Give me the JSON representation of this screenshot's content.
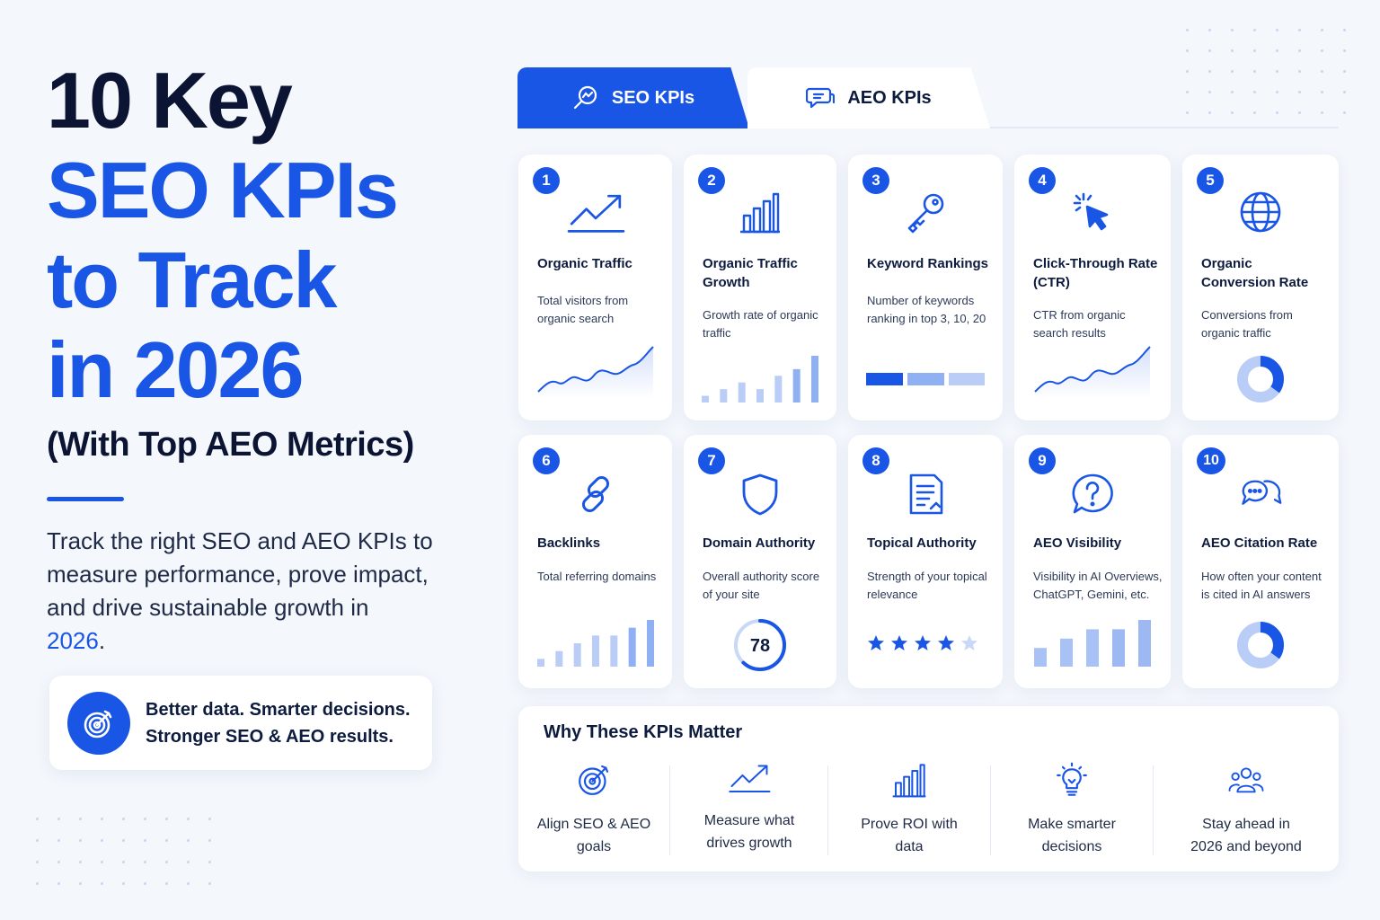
{
  "hero": {
    "title_line1": "10 Key",
    "title_line2": "SEO KPIs",
    "title_line3": "to Track",
    "title_line4": "in 2026",
    "subtitle": "(With Top AEO Metrics)",
    "lede_text": "Track the right SEO and AEO KPIs to measure performance, prove impact, and drive sustainable growth in ",
    "lede_year": "2026",
    "lede_end": "."
  },
  "callout": {
    "line1": "Better data. Smarter decisions.",
    "line2": "Stronger SEO & AEO results.",
    "icon": "target-icon"
  },
  "tabs": [
    {
      "label": "SEO KPIs",
      "icon": "search-icon",
      "active": true
    },
    {
      "label": "AEO KPIs",
      "icon": "chat-icon",
      "active": false
    }
  ],
  "kpis": [
    {
      "num": "1",
      "title": "Organic Traffic",
      "desc": "Total visitors from organic search",
      "icon": "trend-up-icon",
      "viz": "line-chart"
    },
    {
      "num": "2",
      "title": "Organic Traffic Growth",
      "desc": "Growth rate of organic traffic",
      "icon": "bar-chart-icon",
      "viz": "bar-chart",
      "viz_values": [
        1,
        2,
        3,
        2,
        4,
        5,
        7
      ]
    },
    {
      "num": "3",
      "title": "Keyword Rankings",
      "desc": "Number of keywords ranking in top 3, 10, 20",
      "icon": "key-icon",
      "viz": "segment-bar"
    },
    {
      "num": "4",
      "title": "Click-Through Rate (CTR)",
      "desc": "CTR from organic search results",
      "icon": "cursor-click-icon",
      "viz": "line-chart"
    },
    {
      "num": "5",
      "title": "Organic Conversion Rate",
      "desc": "Conversions from organic traffic",
      "icon": "globe-icon",
      "viz": "donut",
      "viz_value": 0.35
    },
    {
      "num": "6",
      "title": "Backlinks",
      "desc": "Total referring domains",
      "icon": "link-icon",
      "viz": "bar-chart",
      "viz_values": [
        1,
        2,
        3,
        4,
        4,
        5,
        6
      ]
    },
    {
      "num": "7",
      "title": "Domain Authority",
      "desc": "Overall authority score of your site",
      "icon": "shield-icon",
      "viz": "gauge",
      "viz_value": "78"
    },
    {
      "num": "8",
      "title": "Topical Authority",
      "desc": "Strength of your topical relevance",
      "icon": "document-icon",
      "viz": "stars",
      "viz_value": 4
    },
    {
      "num": "9",
      "title": "AEO Visibility",
      "desc": "Visibility in AI Overviews, ChatGPT, Gemini, etc.",
      "icon": "question-bubble-icon",
      "viz": "bar-chart",
      "viz_values": [
        2,
        3,
        4,
        4,
        5
      ]
    },
    {
      "num": "10",
      "title": "AEO Citation Rate",
      "desc": "How often your content is cited in AI answers",
      "icon": "chat-bubbles-icon",
      "viz": "donut",
      "viz_value": 0.35
    }
  ],
  "why": {
    "title": "Why These KPIs Matter",
    "items": [
      {
        "label_line1": "Align SEO & AEO",
        "label_line2": "goals",
        "icon": "target-icon"
      },
      {
        "label_line1": "Measure what",
        "label_line2": "drives growth",
        "icon": "trend-up-icon"
      },
      {
        "label_line1": "Prove ROI with",
        "label_line2": "data",
        "icon": "bar-chart-icon"
      },
      {
        "label_line1": "Make smarter",
        "label_line2": "decisions",
        "icon": "lightbulb-icon"
      },
      {
        "label_line1": "Stay ahead in",
        "label_line2": "2026 and beyond",
        "icon": "people-icon"
      }
    ]
  },
  "colors": {
    "accent": "#1a56e6",
    "ink": "#0b1433",
    "light_accent": "#a9c2f5",
    "bg": "#f4f7fc"
  }
}
